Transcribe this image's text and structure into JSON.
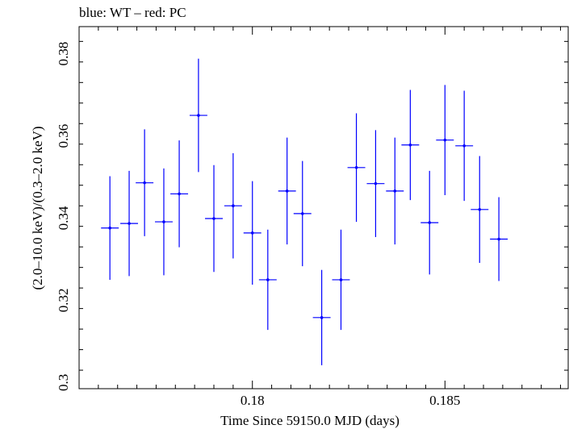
{
  "chart_data": {
    "type": "scatter",
    "title": "blue: WT – red: PC",
    "xlabel": "Time Since 59150.0 MJD (days)",
    "ylabel": "(2.0–10.0 keV)/(0.3–2.0 keV)",
    "xlim": [
      0.1755,
      0.1882
    ],
    "ylim": [
      0.2985,
      0.3866
    ],
    "x_ticks": [
      0.18,
      0.185
    ],
    "x_tick_labels": [
      "0.18",
      "0.185"
    ],
    "y_ticks": [
      0.3,
      0.32,
      0.34,
      0.36,
      0.38
    ],
    "y_tick_labels": [
      "0.3",
      "0.32",
      "0.34",
      "0.36",
      "0.38"
    ],
    "grid": false,
    "series": [
      {
        "color": "#0000ff",
        "x": [
          0.1763,
          0.1768,
          0.1772,
          0.1777,
          0.1781,
          0.1786,
          0.179,
          0.1795,
          0.18,
          0.1804,
          0.1809,
          0.1813,
          0.1818,
          0.1823,
          0.1827,
          0.1832,
          0.1837,
          0.1841,
          0.1846,
          0.185,
          0.1855,
          0.1859,
          0.1864
        ],
        "y": [
          0.3376,
          0.3387,
          0.3486,
          0.3391,
          0.3459,
          0.365,
          0.3399,
          0.343,
          0.3364,
          0.325,
          0.3466,
          0.3411,
          0.3158,
          0.325,
          0.3523,
          0.3484,
          0.3466,
          0.3578,
          0.3389,
          0.359,
          0.3576,
          0.3421,
          0.3349
        ],
        "xerr": 0.00023,
        "yerr": [
          0.0126,
          0.0128,
          0.013,
          0.013,
          0.013,
          0.0138,
          0.013,
          0.0128,
          0.0126,
          0.0122,
          0.013,
          0.0128,
          0.0116,
          0.0122,
          0.0132,
          0.013,
          0.013,
          0.0134,
          0.0126,
          0.0134,
          0.0134,
          0.013,
          0.0102
        ]
      }
    ]
  }
}
